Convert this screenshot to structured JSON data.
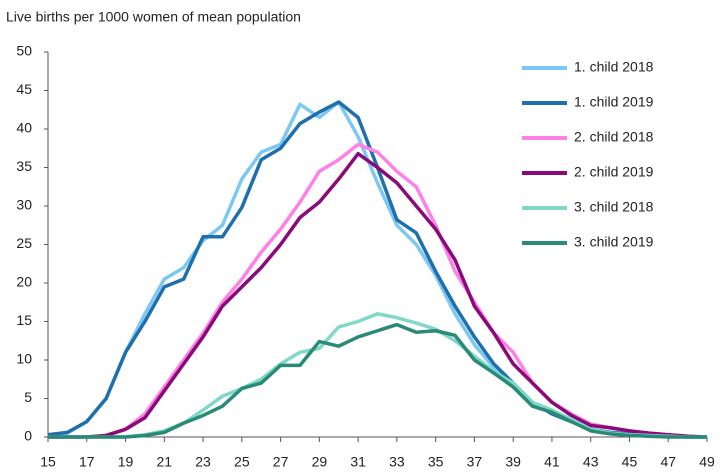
{
  "chart_data": {
    "type": "line",
    "y_label": "Live births per 1000 women of mean population",
    "x": [
      15,
      16,
      17,
      18,
      19,
      20,
      21,
      22,
      23,
      24,
      25,
      26,
      27,
      28,
      29,
      30,
      31,
      32,
      33,
      34,
      35,
      36,
      37,
      38,
      39,
      40,
      41,
      42,
      43,
      44,
      45,
      46,
      47,
      48,
      49
    ],
    "xlim": [
      15,
      49
    ],
    "xticks": [
      15,
      17,
      19,
      21,
      23,
      25,
      27,
      29,
      31,
      33,
      35,
      37,
      39,
      41,
      43,
      45,
      47,
      49
    ],
    "ylim": [
      0,
      50
    ],
    "yticks": [
      0,
      5,
      10,
      15,
      20,
      25,
      30,
      35,
      40,
      45,
      50
    ],
    "grid": false,
    "legend": "top-right",
    "series": [
      {
        "name": "1. child 2018",
        "color": "#7cc8f4",
        "values": [
          0.3,
          0.5,
          2,
          5,
          11,
          16,
          20.5,
          22,
          25.5,
          27.5,
          33.5,
          37,
          38,
          43.2,
          41.5,
          43.5,
          39,
          33,
          27.5,
          25,
          21,
          16,
          12,
          9,
          7,
          4.5,
          3,
          2,
          1,
          0.6,
          0.4,
          0.2,
          0.1,
          0,
          0
        ]
      },
      {
        "name": "1. child 2019",
        "color": "#1f6fad",
        "values": [
          0.3,
          0.6,
          2,
          5,
          11,
          15,
          19.5,
          20.5,
          26,
          26,
          29.8,
          36,
          37.5,
          40.7,
          42.2,
          43.5,
          41.5,
          35,
          28.2,
          26.5,
          21.5,
          17,
          13,
          9.5,
          7,
          4.5,
          3,
          2,
          1,
          0.6,
          0.4,
          0.2,
          0.1,
          0,
          0
        ]
      },
      {
        "name": "2. child 2018",
        "color": "#ff80e6",
        "values": [
          0,
          0,
          0,
          0.2,
          1,
          3,
          6.5,
          10,
          13.5,
          17.5,
          20.5,
          24,
          27,
          30.5,
          34.5,
          36,
          38,
          37,
          34.5,
          32.5,
          27.5,
          21.5,
          17.5,
          13.5,
          11,
          7,
          4.5,
          3,
          1.7,
          1.2,
          0.8,
          0.5,
          0.3,
          0.1,
          0
        ]
      },
      {
        "name": "2. child 2019",
        "color": "#8b0a7a",
        "values": [
          0,
          0,
          0,
          0.2,
          1,
          2.5,
          6,
          9.5,
          13,
          17,
          19.5,
          22,
          25,
          28.5,
          30.5,
          33.5,
          36.8,
          35,
          33,
          30,
          27,
          23,
          17,
          13.5,
          9.5,
          7,
          4.5,
          2.8,
          1.5,
          1.2,
          0.8,
          0.5,
          0.3,
          0.1,
          0
        ]
      },
      {
        "name": "3. child 2018",
        "color": "#80d8c8",
        "values": [
          0,
          0,
          0,
          0,
          0,
          0.3,
          0.8,
          1.8,
          3.5,
          5.3,
          6.3,
          7.5,
          9.5,
          11,
          11.5,
          14.3,
          15,
          16,
          15.5,
          14.8,
          14,
          12.5,
          10.5,
          8.5,
          7,
          4.5,
          3.5,
          2.3,
          1,
          0.5,
          0.3,
          0.2,
          0.1,
          0,
          0
        ]
      },
      {
        "name": "3. child 2019",
        "color": "#2a8a78",
        "values": [
          0,
          0,
          0,
          0,
          0,
          0.2,
          0.6,
          1.8,
          2.8,
          4,
          6.3,
          7,
          9.3,
          9.3,
          12.4,
          11.8,
          13,
          13.8,
          14.6,
          13.6,
          13.8,
          13.2,
          10,
          8.3,
          6.5,
          4,
          3.2,
          2,
          0.8,
          0.4,
          0.2,
          0.1,
          0,
          0,
          0
        ]
      }
    ]
  }
}
